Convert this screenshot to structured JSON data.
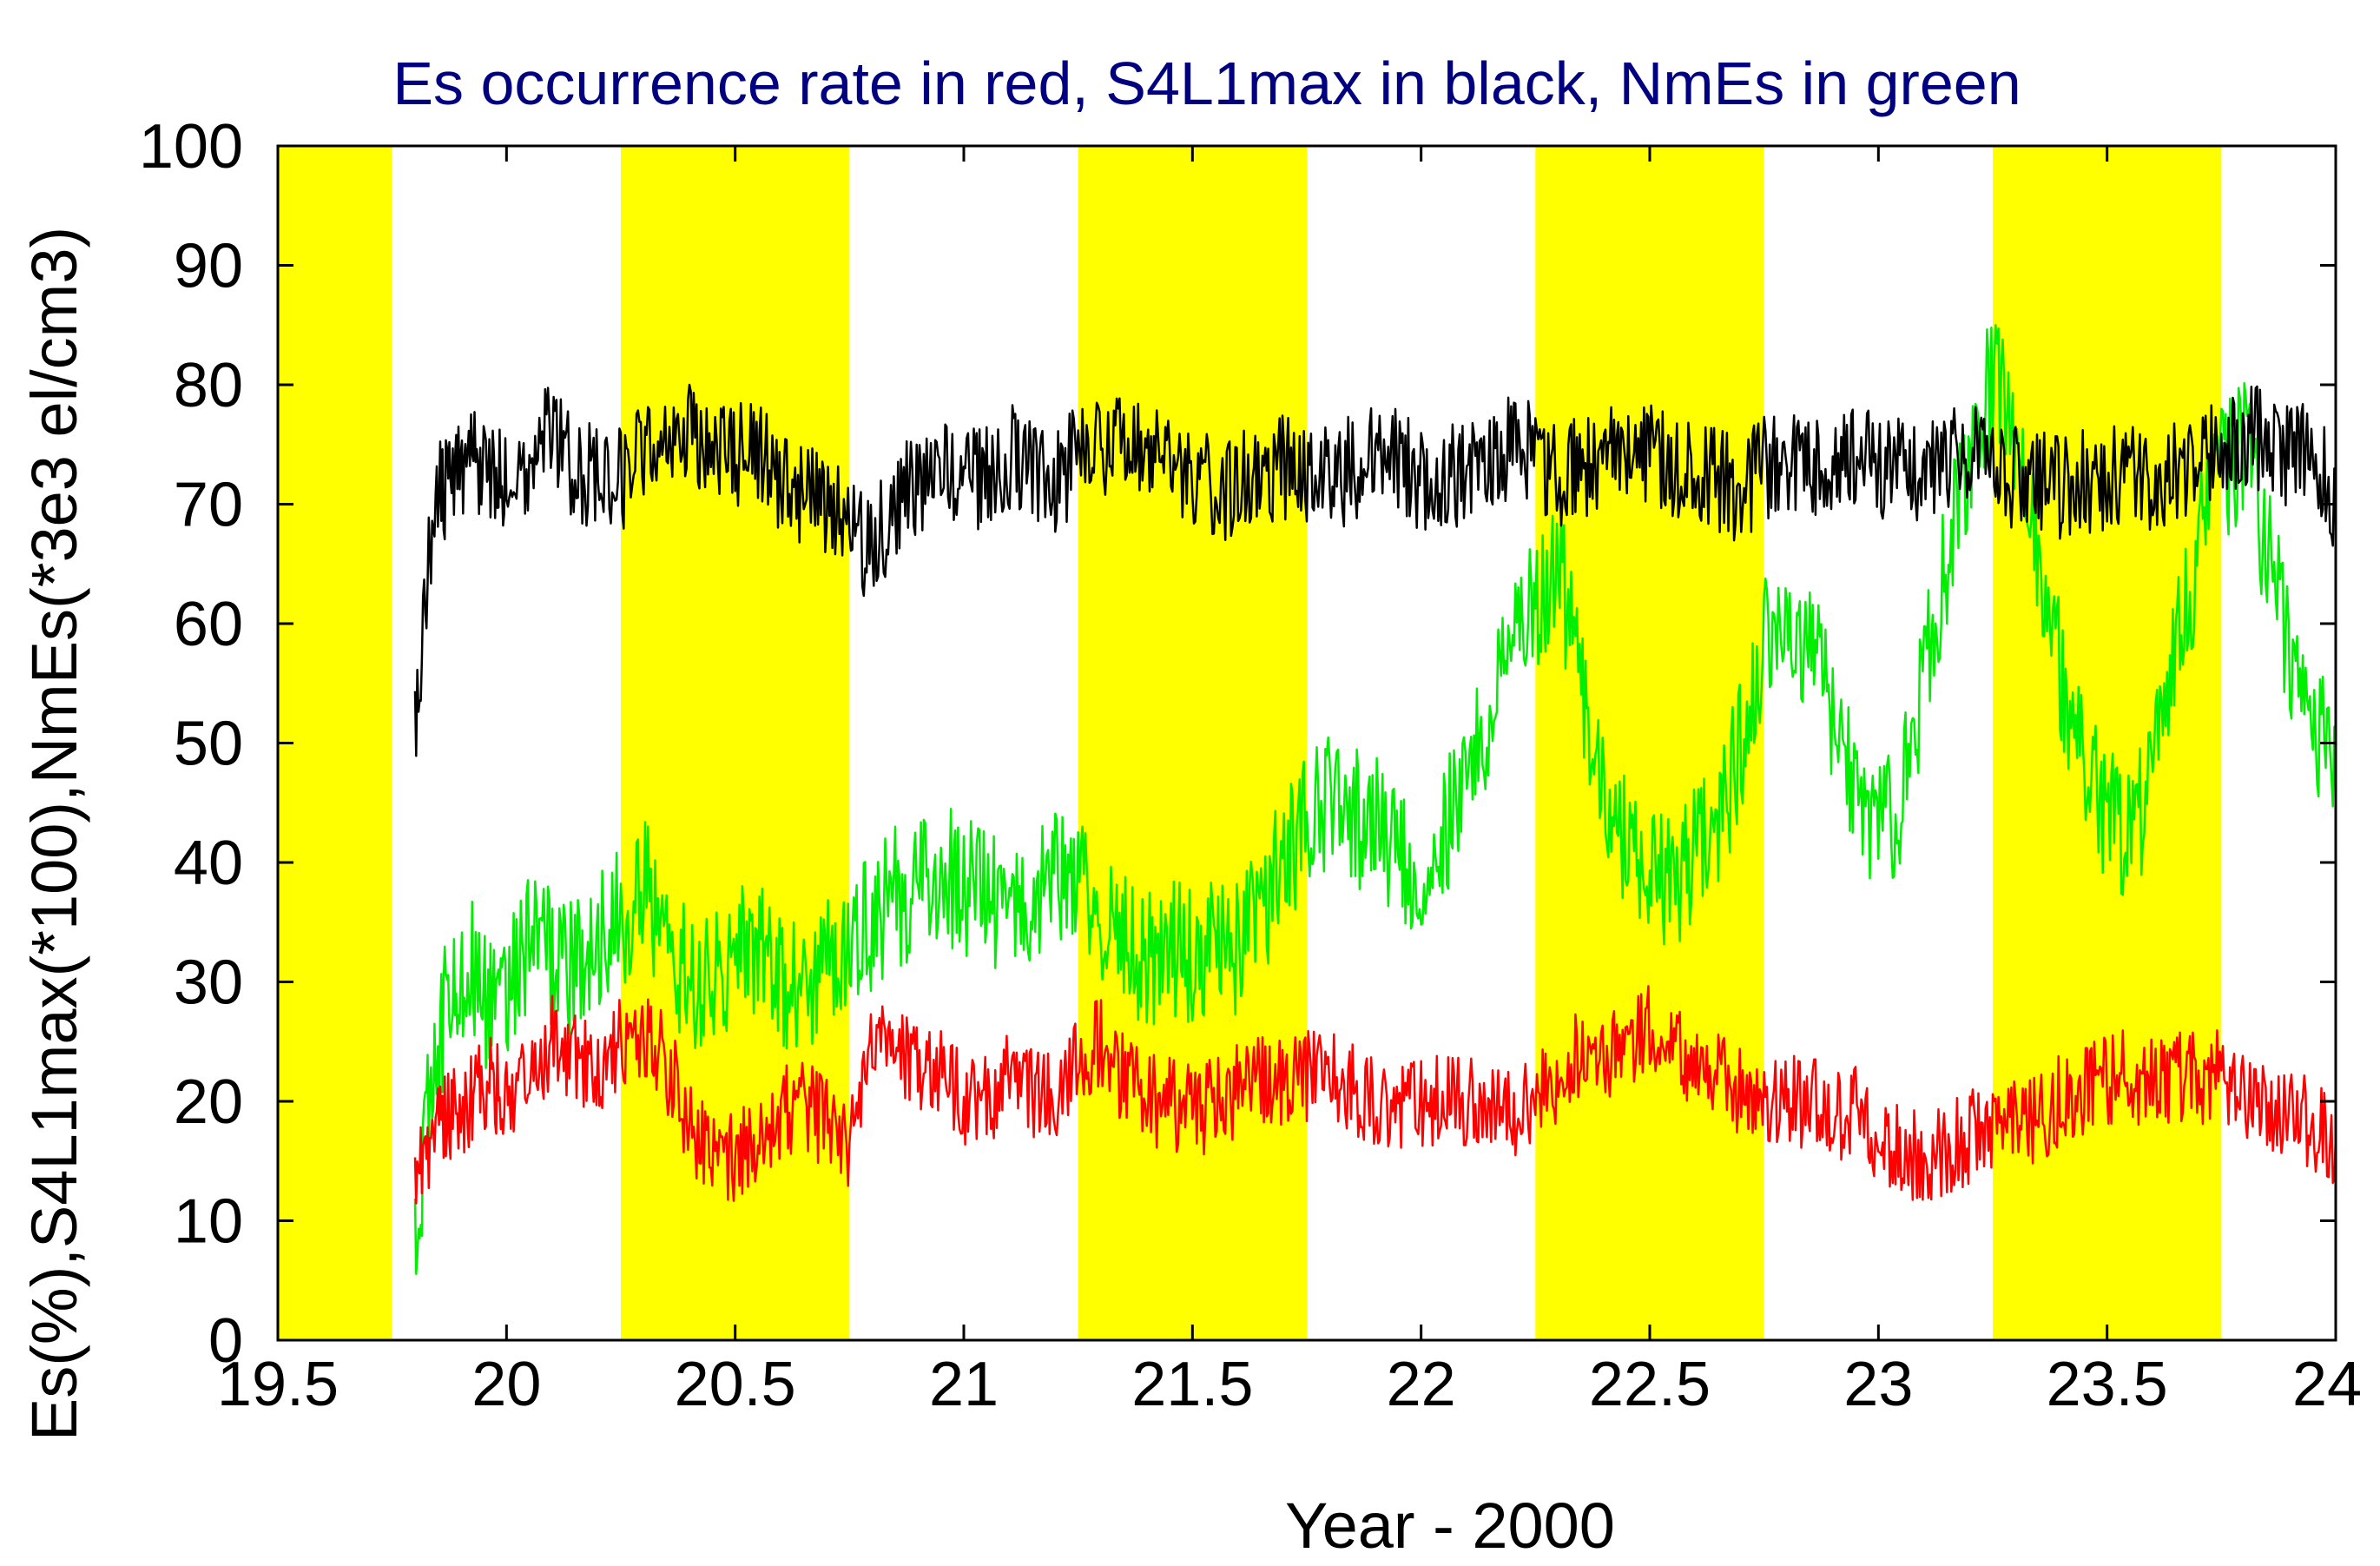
{
  "chart_data": {
    "type": "line",
    "title": "Es occurrence rate in red, S4L1max in black, NmEs in green",
    "xlabel": "Year - 2000",
    "ylabel": "Es(%),S4L1max(*100),NmEs(*3e3 el/cm3)",
    "xlim": [
      19.5,
      24
    ],
    "ylim": [
      0,
      100
    ],
    "x_ticks": [
      "19.5",
      "20",
      "20.5",
      "21",
      "21.5",
      "22",
      "22.5",
      "23",
      "23.5",
      "24"
    ],
    "y_ticks": [
      "0",
      "10",
      "20",
      "30",
      "40",
      "50",
      "60",
      "70",
      "80",
      "90",
      "100"
    ],
    "grid": false,
    "legend": "none (colors described in title)",
    "colors": {
      "title": "#000080",
      "es_rate": "#ff0000",
      "s4l1max": "#000000",
      "nmes": "#00ee00",
      "season_band": "#ffff00"
    },
    "shaded_bands": [
      {
        "x_start": 19.5,
        "x_end": 19.75
      },
      {
        "x_start": 20.25,
        "x_end": 20.75
      },
      {
        "x_start": 21.25,
        "x_end": 21.75
      },
      {
        "x_start": 22.25,
        "x_end": 22.75
      },
      {
        "x_start": 23.25,
        "x_end": 23.75
      }
    ],
    "series": [
      {
        "key": "nmes",
        "color": "#00ee00",
        "x": [
          19.8,
          19.84,
          19.88,
          19.92,
          19.96,
          20.0,
          20.05,
          20.1,
          20.15,
          20.2,
          20.25,
          20.3,
          20.35,
          20.4,
          20.45,
          20.5,
          20.55,
          20.6,
          20.65,
          20.7,
          20.75,
          20.8,
          20.85,
          20.9,
          20.95,
          21.0,
          21.05,
          21.1,
          21.15,
          21.2,
          21.25,
          21.3,
          21.35,
          21.4,
          21.45,
          21.5,
          21.55,
          21.6,
          21.65,
          21.7,
          21.75,
          21.8,
          21.85,
          21.9,
          21.95,
          22.0,
          22.05,
          22.1,
          22.15,
          22.2,
          22.25,
          22.3,
          22.35,
          22.4,
          22.45,
          22.5,
          22.55,
          22.6,
          22.65,
          22.7,
          22.75,
          22.8,
          22.85,
          22.9,
          22.95,
          23.0,
          23.05,
          23.1,
          23.15,
          23.2,
          23.25,
          23.3,
          23.35,
          23.4,
          23.45,
          23.5,
          23.55,
          23.6,
          23.65,
          23.7,
          23.75,
          23.8,
          23.85,
          23.9,
          23.95,
          24.0
        ],
        "y": [
          10,
          22,
          30,
          32,
          28,
          30,
          33,
          32,
          31,
          34,
          35,
          38,
          33,
          30,
          31,
          32,
          33,
          30,
          29,
          32,
          33,
          35,
          37,
          38,
          39,
          38,
          37,
          36,
          37,
          40,
          38,
          35,
          33,
          32,
          33,
          32,
          34,
          33,
          36,
          40,
          43,
          45,
          44,
          43,
          40,
          40,
          42,
          47,
          52,
          57,
          62,
          65,
          55,
          46,
          42,
          40,
          38,
          41,
          43,
          50,
          58,
          62,
          58,
          52,
          46,
          42,
          46,
          55,
          65,
          75,
          80,
          75,
          65,
          55,
          48,
          44,
          42,
          47,
          58,
          66,
          72,
          75,
          66,
          58,
          52,
          48
        ]
      },
      {
        "key": "s4l1max",
        "color": "#000000",
        "x": [
          19.8,
          19.84,
          19.88,
          19.92,
          19.96,
          20.0,
          20.05,
          20.1,
          20.15,
          20.2,
          20.25,
          20.3,
          20.35,
          20.4,
          20.45,
          20.5,
          20.55,
          20.6,
          20.65,
          20.7,
          20.75,
          20.8,
          20.85,
          20.9,
          20.95,
          21.0,
          21.05,
          21.1,
          21.15,
          21.2,
          21.25,
          21.3,
          21.35,
          21.4,
          21.45,
          21.5,
          21.55,
          21.6,
          21.65,
          21.7,
          21.75,
          21.8,
          21.85,
          21.9,
          21.95,
          22.0,
          22.05,
          22.1,
          22.15,
          22.2,
          22.25,
          22.3,
          22.35,
          22.4,
          22.45,
          22.5,
          22.55,
          22.6,
          22.65,
          22.7,
          22.75,
          22.8,
          22.85,
          22.9,
          22.95,
          23.0,
          23.05,
          23.1,
          23.15,
          23.2,
          23.25,
          23.3,
          23.35,
          23.4,
          23.45,
          23.5,
          23.55,
          23.6,
          23.65,
          23.7,
          23.75,
          23.8,
          23.85,
          23.9,
          23.95,
          24.0
        ],
        "y": [
          50,
          70,
          72,
          74,
          73,
          72,
          74,
          76,
          73,
          72,
          72,
          75,
          76,
          76,
          75,
          74,
          74,
          72,
          71,
          70,
          68,
          66,
          70,
          72,
          73,
          72,
          72,
          74,
          73,
          72,
          74,
          75,
          76,
          74,
          73,
          72,
          71,
          72,
          73,
          73,
          72,
          72,
          73,
          74,
          74,
          72,
          72,
          73,
          74,
          75,
          74,
          72,
          73,
          74,
          75,
          74,
          73,
          72,
          72,
          71,
          73,
          74,
          73,
          73,
          74,
          73,
          73,
          73,
          74,
          74,
          73,
          72,
          72,
          71,
          72,
          72,
          73,
          72,
          73,
          74,
          74,
          76,
          75,
          74,
          74,
          70
        ]
      },
      {
        "key": "es_rate",
        "color": "#ff0000",
        "x": [
          19.8,
          19.84,
          19.88,
          19.92,
          19.96,
          20.0,
          20.05,
          20.1,
          20.15,
          20.2,
          20.25,
          20.3,
          20.35,
          20.4,
          20.45,
          20.5,
          20.55,
          20.6,
          20.65,
          20.7,
          20.75,
          20.8,
          20.85,
          20.9,
          20.95,
          21.0,
          21.05,
          21.1,
          21.15,
          21.2,
          21.25,
          21.3,
          21.35,
          21.4,
          21.45,
          21.5,
          21.55,
          21.6,
          21.65,
          21.7,
          21.75,
          21.8,
          21.85,
          21.9,
          21.95,
          22.0,
          22.05,
          22.1,
          22.15,
          22.2,
          22.25,
          22.3,
          22.35,
          22.4,
          22.45,
          22.5,
          22.55,
          22.6,
          22.65,
          22.7,
          22.75,
          22.8,
          22.85,
          22.9,
          22.95,
          23.0,
          23.05,
          23.1,
          23.15,
          23.2,
          23.25,
          23.3,
          23.35,
          23.4,
          23.45,
          23.5,
          23.55,
          23.6,
          23.65,
          23.7,
          23.75,
          23.8,
          23.85,
          23.9,
          23.95,
          24.0
        ],
        "y": [
          15,
          17,
          19,
          20,
          22,
          20,
          22,
          25,
          24,
          22,
          25,
          26,
          23,
          18,
          16,
          15,
          17,
          19,
          20,
          18,
          16,
          24,
          24,
          23,
          22,
          20,
          20,
          22,
          21,
          20,
          24,
          25,
          22,
          20,
          20,
          19,
          20,
          21,
          22,
          22,
          22,
          22,
          21,
          20,
          20,
          20,
          20,
          20,
          19,
          19,
          20,
          22,
          24,
          24,
          25,
          26,
          24,
          23,
          22,
          21,
          20,
          20,
          20,
          19,
          19,
          17,
          16,
          15,
          16,
          17,
          18,
          18,
          19,
          20,
          21,
          22,
          22,
          22,
          22,
          22,
          22,
          21,
          20,
          19,
          18,
          17
        ]
      }
    ]
  }
}
